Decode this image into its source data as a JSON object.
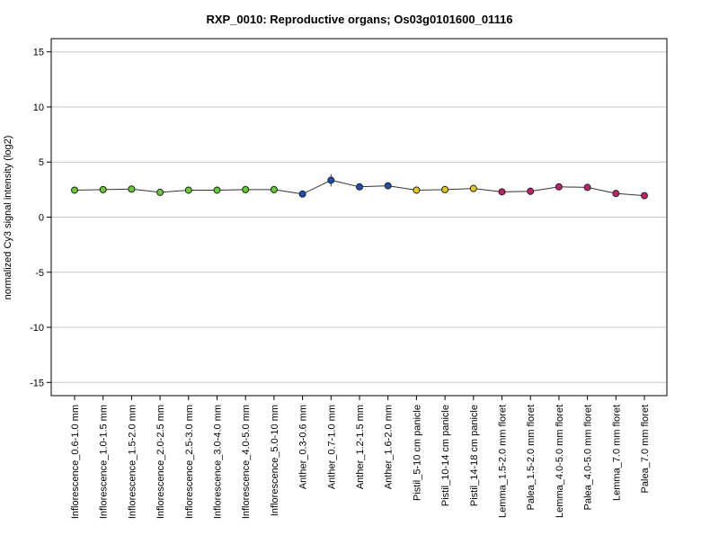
{
  "chart_data": {
    "type": "line",
    "title": "RXP_0010: Reproductive organs; Os03g0101600_01116",
    "xlabel": "",
    "ylabel": "normalized Cy3 signal intensity (log2)",
    "ylim": [
      -16.2,
      16.2
    ],
    "yticks": [
      -15,
      -10,
      -5,
      0,
      5,
      10,
      15
    ],
    "ytick_labels": [
      "-15",
      "-10",
      "-5",
      "0",
      "5",
      "10",
      "15"
    ],
    "grid": true,
    "categories": [
      "Inflorescence_0.6-1.0 mm",
      "Inflorescence_1.0-1.5 mm",
      "Inflorescence_1.5-2.0 mm",
      "Inflorescence_2.0-2.5 mm",
      "Inflorescence_2.5-3.0 mm",
      "Inflorescence_3.0-4.0 mm",
      "Inflorescence_4.0-5.0 mm",
      "Inflorescence_5.0-10 mm",
      "Anther_0.3-0.6 mm",
      "Anther_0.7-1.0 mm",
      "Anther_1.2-1.5 mm",
      "Anther_1.6-2.0 mm",
      "Pistil_5-10 cm panicle",
      "Pistil_10-14 cm panicle",
      "Pistil_14-18 cm panicle",
      "Lemma_1.5-2.0 mm floret",
      "Palea_1.5-2.0 mm floret",
      "Lemma_4.0-5.0 mm floret",
      "Palea_4.0-5.0 mm floret",
      "Lemma_7.0 mm floret",
      "Palea_7.0 mm floret"
    ],
    "values": [
      2.45,
      2.5,
      2.55,
      2.25,
      2.45,
      2.45,
      2.5,
      2.5,
      2.1,
      3.35,
      2.75,
      2.85,
      2.45,
      2.5,
      2.6,
      2.3,
      2.35,
      2.75,
      2.7,
      2.15,
      1.95
    ],
    "errors": [
      0.15,
      0.12,
      0.15,
      0.1,
      0.12,
      0.12,
      0.12,
      0.12,
      0.15,
      0.55,
      0.15,
      0.25,
      0.3,
      0.15,
      0.2,
      0.25,
      0.35,
      0.15,
      0.15,
      0.12,
      0.12
    ],
    "colors": [
      "#66cc33",
      "#66cc33",
      "#66cc33",
      "#66cc33",
      "#66cc33",
      "#66cc33",
      "#66cc33",
      "#66cc33",
      "#1a4fb5",
      "#1a4fb5",
      "#1a4fb5",
      "#1a4fb5",
      "#e6cc1a",
      "#e6cc1a",
      "#e6cc1a",
      "#cc1a6e",
      "#cc1a6e",
      "#cc1a6e",
      "#cc1a6e",
      "#cc1a6e",
      "#cc1a6e"
    ]
  }
}
